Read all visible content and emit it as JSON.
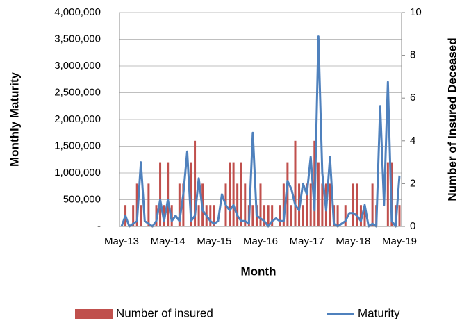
{
  "chart_data": {
    "type": "bar_line",
    "xlabel": "Month",
    "ylabel": "Monthly Maturity",
    "y2label": "Number of Insured Deceased",
    "categories": [
      "May-13",
      null,
      null,
      null,
      null,
      null,
      null,
      null,
      null,
      null,
      null,
      null,
      "May-14",
      null,
      null,
      null,
      null,
      null,
      null,
      null,
      null,
      null,
      null,
      null,
      "May-15",
      null,
      null,
      null,
      null,
      null,
      null,
      null,
      null,
      null,
      null,
      null,
      "May-16",
      null,
      null,
      null,
      null,
      null,
      null,
      null,
      null,
      null,
      null,
      null,
      "May-17",
      null,
      null,
      null,
      null,
      null,
      null,
      null,
      null,
      null,
      null,
      null,
      "May-18",
      null,
      null,
      null,
      null,
      null,
      null,
      null,
      null,
      null,
      null,
      null,
      "May-19"
    ],
    "series": [
      {
        "name": "Number of insured",
        "kind": "bar",
        "axis": "y2",
        "color": "#c0504d",
        "values": [
          0,
          1,
          0,
          1,
          2,
          1,
          0,
          2,
          0,
          1,
          3,
          1,
          3,
          1,
          0,
          2,
          2,
          0,
          3,
          4,
          1,
          2,
          1,
          1,
          1,
          0,
          0,
          2,
          3,
          3,
          2,
          3,
          2,
          1,
          1,
          1,
          2,
          1,
          1,
          1,
          0,
          1,
          2,
          3,
          1,
          4,
          2,
          1,
          2,
          2,
          4,
          3,
          2,
          2,
          2,
          1,
          1,
          0,
          1,
          0,
          2,
          2,
          1,
          1,
          0,
          2,
          1,
          0,
          0,
          3,
          3,
          1,
          1
        ]
      },
      {
        "name": "Maturity",
        "kind": "line",
        "axis": "y",
        "color": "#4f81bd",
        "values": [
          0,
          200000,
          0,
          50000,
          100000,
          1200000,
          100000,
          50000,
          0,
          100000,
          500000,
          100000,
          500000,
          100000,
          200000,
          100000,
          600000,
          1400000,
          100000,
          200000,
          900000,
          300000,
          200000,
          100000,
          50000,
          100000,
          600000,
          400000,
          300000,
          400000,
          200000,
          100000,
          100000,
          50000,
          1750000,
          200000,
          150000,
          100000,
          0,
          100000,
          150000,
          100000,
          100000,
          850000,
          700000,
          400000,
          300000,
          800000,
          600000,
          1300000,
          300000,
          3550000,
          1000000,
          300000,
          1300000,
          50000,
          0,
          50000,
          100000,
          250000,
          250000,
          200000,
          100000,
          400000,
          0,
          50000,
          0,
          2250000,
          400000,
          2700000,
          100000,
          0,
          950000
        ]
      }
    ],
    "ylim": [
      0,
      4000000
    ],
    "yticks": [
      {
        "value": 0,
        "label": "-"
      },
      {
        "value": 500000,
        "label": "500,000"
      },
      {
        "value": 1000000,
        "label": "1,000,000"
      },
      {
        "value": 1500000,
        "label": "1,500,000"
      },
      {
        "value": 2000000,
        "label": "2,000,000"
      },
      {
        "value": 2500000,
        "label": "2,500,000"
      },
      {
        "value": 3000000,
        "label": "3,000,000"
      },
      {
        "value": 3500000,
        "label": "3,500,000"
      },
      {
        "value": 4000000,
        "label": "4,000,000"
      }
    ],
    "y2lim": [
      0,
      10
    ],
    "y2ticks": [
      0,
      2,
      4,
      6,
      8,
      10
    ],
    "grid": true,
    "legend": "bottom"
  }
}
